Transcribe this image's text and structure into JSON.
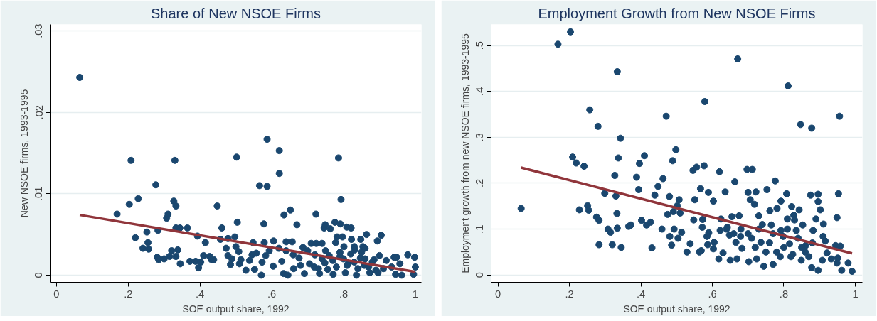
{
  "chart_data": [
    {
      "type": "scatter",
      "title": "Share of New NSOE Firms",
      "xlabel": "SOE output share, 1992",
      "ylabel": "New NSOE firms, 1993-1995",
      "xlim": [
        -0.0175,
        1.017
      ],
      "ylim": [
        -0.00088,
        0.0308
      ],
      "xticks": [
        0,
        {
          "value": 0.2,
          "label": ".2"
        },
        {
          "value": 0.4,
          "label": ".4"
        },
        {
          "value": 0.6,
          "label": ".6"
        },
        {
          "value": 0.8,
          "label": ".8"
        },
        1
      ],
      "yticks": [
        0,
        {
          "value": 0.01,
          "label": ".01"
        },
        {
          "value": 0.02,
          "label": ".02"
        },
        {
          "value": 0.03,
          "label": ".03"
        }
      ],
      "grid": "y",
      "series": [
        {
          "marker": "circle",
          "color": "#1a476f",
          "x": [
            0.065,
            0.169,
            0.203,
            0.208,
            0.228,
            0.22,
            0.252,
            0.241,
            0.255,
            0.257,
            0.277,
            0.283,
            0.281,
            0.285,
            0.3,
            0.307,
            0.311,
            0.327,
            0.33,
            0.333,
            0.315,
            0.321,
            0.333,
            0.338,
            0.333,
            0.344,
            0.345,
            0.365,
            0.372,
            0.393,
            0.388,
            0.402,
            0.396,
            0.41,
            0.415,
            0.427,
            0.432,
            0.438,
            0.448,
            0.461,
            0.457,
            0.473,
            0.478,
            0.478,
            0.485,
            0.489,
            0.497,
            0.502,
            0.504,
            0.5,
            0.508,
            0.51,
            0.514,
            0.528,
            0.538,
            0.545,
            0.548,
            0.552,
            0.557,
            0.566,
            0.571,
            0.573,
            0.578,
            0.579,
            0.587,
            0.587,
            0.583,
            0.593,
            0.604,
            0.605,
            0.621,
            0.621,
            0.634,
            0.652,
            0.64,
            0.628,
            0.633,
            0.657,
            0.645,
            0.67,
            0.676,
            0.661,
            0.687,
            0.691,
            0.705,
            0.71,
            0.723,
            0.724,
            0.718,
            0.733,
            0.74,
            0.746,
            0.749,
            0.763,
            0.748,
            0.756,
            0.771,
            0.776,
            0.778,
            0.782,
            0.786,
            0.793,
            0.791,
            0.797,
            0.801,
            0.79,
            0.809,
            0.821,
            0.822,
            0.813,
            0.805,
            0.831,
            0.836,
            0.848,
            0.847,
            0.854,
            0.864,
            0.858,
            0.873,
            0.885,
            0.894,
            0.905,
            0.9,
            0.896,
            0.911,
            0.919,
            0.934,
            0.941,
            0.945,
            0.948,
            0.957,
            0.962,
            0.979,
            0.998,
            1.0,
            0.995,
            0.7,
            0.72,
            0.74,
            0.75,
            0.77,
            0.79,
            0.8,
            0.81,
            0.82,
            0.83,
            0.84,
            0.85,
            0.86,
            0.87,
            0.88,
            0.89,
            0.66,
            0.68,
            0.64,
            0.62,
            0.73,
            0.76,
            0.78,
            0.83,
            0.86
          ],
          "values": [
            0.0243,
            0.0075,
            0.0087,
            0.0141,
            0.0094,
            0.0046,
            0.0053,
            0.0033,
            0.004,
            0.0032,
            0.0111,
            0.0055,
            0.0022,
            0.0019,
            0.002,
            0.007,
            0.0075,
            0.0091,
            0.0141,
            0.0085,
            0.0023,
            0.003,
            0.0023,
            0.0031,
            0.0058,
            0.0058,
            0.0014,
            0.0058,
            0.0017,
            0.0048,
            0.0017,
            0.0016,
            0.0009,
            0.0024,
            0.004,
            0.0023,
            0.0019,
            0.0019,
            0.0085,
            0.0058,
            0.0044,
            0.0033,
            0.0045,
            0.0024,
            0.0013,
            0.002,
            0.0047,
            0.0145,
            0.0065,
            0.0035,
            0.0029,
            0.0014,
            0.0019,
            0.0006,
            0.0018,
            0.0025,
            0.004,
            0.0007,
            0.0027,
            0.011,
            0.0,
            0.0016,
            0.0063,
            0.004,
            0.0167,
            0.0109,
            0.0024,
            0.003,
            0.0011,
            0.0042,
            0.0125,
            0.0153,
            0.0074,
            0.008,
            0.0041,
            0.0017,
            0.0002,
            0.0041,
            0.0,
            0.0062,
            0.0021,
            0.0008,
            0.0034,
            0.0002,
            0.0014,
            0.0039,
            0.0075,
            0.0039,
            0.001,
            0.0002,
            0.0039,
            0.0058,
            0.0062,
            0.0057,
            0.0015,
            0.0007,
            0.0001,
            0.0065,
            0.004,
            0.0047,
            0.0144,
            0.0093,
            0.0063,
            0.0047,
            0.0035,
            0.0023,
            0.0059,
            0.0058,
            0.0044,
            0.0014,
            0.0003,
            0.0031,
            0.0,
            0.0044,
            0.0021,
            0.0035,
            0.005,
            0.0012,
            0.0003,
            0.0019,
            0.0042,
            0.0049,
            0.0024,
            0.0003,
            0.0008,
            0.0018,
            0.001,
            0.0022,
            0.0001,
            0.0022,
            0.0014,
            0.0,
            0.0025,
            0.0022,
            0.001,
            0.0001,
            0.003,
            0.0025,
            0.002,
            0.003,
            0.0018,
            0.0028,
            0.002,
            0.0012,
            0.0026,
            0.0016,
            0.0008,
            0.0028,
            0.002,
            0.001,
            0.0016,
            0.0006,
            0.0025,
            0.0012,
            0.003,
            0.0033,
            0.0008,
            0.0024,
            0.001,
            0.0035,
            0.0033
          ]
        },
        {
          "type": "line",
          "color": "#90353b",
          "x": [
            0.065,
            1.0
          ],
          "values": [
            0.0074,
            0.0004
          ]
        }
      ]
    },
    {
      "type": "scatter",
      "title": "Employment Growth from New NSOE Firms",
      "xlabel": "SOE output share, 1992",
      "ylabel": "Employment growth from new NSOE firms, 1993-1995",
      "xlim": [
        -0.019,
        1.02
      ],
      "ylim": [
        -0.016,
        0.546
      ],
      "xticks": [
        0,
        {
          "value": 0.2,
          "label": ".2"
        },
        {
          "value": 0.4,
          "label": ".4"
        },
        {
          "value": 0.6,
          "label": ".6"
        },
        {
          "value": 0.8,
          "label": ".8"
        },
        1
      ],
      "yticks": [
        0,
        {
          "value": 0.1,
          "label": ".1"
        },
        {
          "value": 0.2,
          "label": ".2"
        },
        {
          "value": 0.3,
          "label": ".3"
        },
        {
          "value": 0.4,
          "label": ".4"
        },
        {
          "value": 0.5,
          "label": ".5"
        }
      ],
      "grid": "y",
      "series": [
        {
          "marker": "circle",
          "color": "#1a476f",
          "x": [
            0.065,
            0.168,
            0.203,
            0.209,
            0.219,
            0.228,
            0.241,
            0.251,
            0.254,
            0.257,
            0.276,
            0.28,
            0.283,
            0.283,
            0.299,
            0.308,
            0.315,
            0.32,
            0.327,
            0.33,
            0.333,
            0.334,
            0.334,
            0.337,
            0.343,
            0.345,
            0.366,
            0.372,
            0.388,
            0.394,
            0.396,
            0.402,
            0.41,
            0.416,
            0.427,
            0.431,
            0.439,
            0.448,
            0.459,
            0.462,
            0.471,
            0.475,
            0.48,
            0.481,
            0.486,
            0.489,
            0.491,
            0.493,
            0.498,
            0.502,
            0.504,
            0.507,
            0.51,
            0.514,
            0.529,
            0.538,
            0.548,
            0.551,
            0.546,
            0.556,
            0.564,
            0.569,
            0.567,
            0.572,
            0.573,
            0.577,
            0.579,
            0.585,
            0.589,
            0.59,
            0.587,
            0.603,
            0.603,
            0.605,
            0.618,
            0.62,
            0.622,
            0.624,
            0.63,
            0.636,
            0.642,
            0.648,
            0.65,
            0.655,
            0.663,
            0.666,
            0.669,
            0.671,
            0.675,
            0.679,
            0.683,
            0.697,
            0.7,
            0.702,
            0.706,
            0.712,
            0.722,
            0.718,
            0.724,
            0.73,
            0.736,
            0.744,
            0.753,
            0.761,
            0.765,
            0.77,
            0.776,
            0.781,
            0.792,
            0.792,
            0.798,
            0.808,
            0.812,
            0.81,
            0.816,
            0.822,
            0.828,
            0.825,
            0.835,
            0.843,
            0.847,
            0.849,
            0.853,
            0.861,
            0.875,
            0.878,
            0.882,
            0.878,
            0.89,
            0.896,
            0.896,
            0.896,
            0.902,
            0.91,
            0.911,
            0.908,
            0.916,
            0.921,
            0.933,
            0.945,
            0.949,
            0.951,
            0.953,
            0.956,
            0.958,
            0.949,
            0.962,
            0.98,
            0.991,
            0.7,
            0.72,
            0.74,
            0.76,
            0.78,
            0.8,
            0.82,
            0.84,
            0.86,
            0.88,
            0.73,
            0.77,
            0.81,
            0.85,
            0.79,
            0.83,
            0.87,
            0.75,
            0.68,
            0.66,
            0.64,
            0.71
          ],
          "values": [
            0.145,
            0.503,
            0.53,
            0.257,
            0.244,
            0.142,
            0.237,
            0.151,
            0.141,
            0.36,
            0.126,
            0.324,
            0.119,
            0.066,
            0.178,
            0.1,
            0.093,
            0.066,
            0.217,
            0.172,
            0.134,
            0.443,
            0.102,
            0.255,
            0.298,
            0.06,
            0.106,
            0.109,
            0.213,
            0.186,
            0.243,
            0.119,
            0.26,
            0.109,
            0.115,
            0.059,
            0.174,
            0.193,
            0.1,
            0.21,
            0.346,
            0.132,
            0.171,
            0.084,
            0.065,
            0.249,
            0.138,
            0.1,
            0.273,
            0.151,
            0.08,
            0.164,
            0.135,
            0.093,
            0.05,
            0.068,
            0.12,
            0.164,
            0.228,
            0.235,
            0.05,
            0.053,
            0.188,
            0.104,
            0.121,
            0.238,
            0.378,
            0.084,
            0.18,
            0.092,
            0.066,
            0.161,
            0.057,
            0.071,
            0.035,
            0.225,
            0.097,
            0.122,
            0.048,
            0.181,
            0.104,
            0.087,
            0.032,
            0.127,
            0.203,
            0.071,
            0.035,
            0.471,
            0.129,
            0.084,
            0.058,
            0.23,
            0.18,
            0.029,
            0.164,
            0.23,
            0.181,
            0.154,
            0.035,
            0.129,
            0.071,
            0.019,
            0.186,
            0.14,
            0.109,
            0.023,
            0.205,
            0.145,
            0.161,
            0.097,
            0.084,
            0.177,
            0.412,
            0.122,
            0.068,
            0.149,
            0.13,
            0.045,
            0.097,
            0.142,
            0.328,
            0.032,
            0.109,
            0.064,
            0.174,
            0.016,
            0.097,
            0.32,
            0.122,
            0.176,
            0.16,
            0.01,
            0.142,
            0.084,
            0.111,
            0.032,
            0.074,
            0.048,
            0.035,
            0.064,
            0.125,
            0.037,
            0.177,
            0.346,
            0.063,
            0.026,
            0.01,
            0.026,
            0.008,
            0.09,
            0.06,
            0.11,
            0.07,
            0.05,
            0.06,
            0.04,
            0.08,
            0.05,
            0.07,
            0.1,
            0.09,
            0.1,
            0.06,
            0.04,
            0.12,
            0.04,
            0.05,
            0.1,
            0.09,
            0.1,
            0.08
          ]
        },
        {
          "type": "line",
          "color": "#90353b",
          "x": [
            0.065,
            0.991
          ],
          "values": [
            0.234,
            0.047
          ]
        }
      ]
    }
  ]
}
